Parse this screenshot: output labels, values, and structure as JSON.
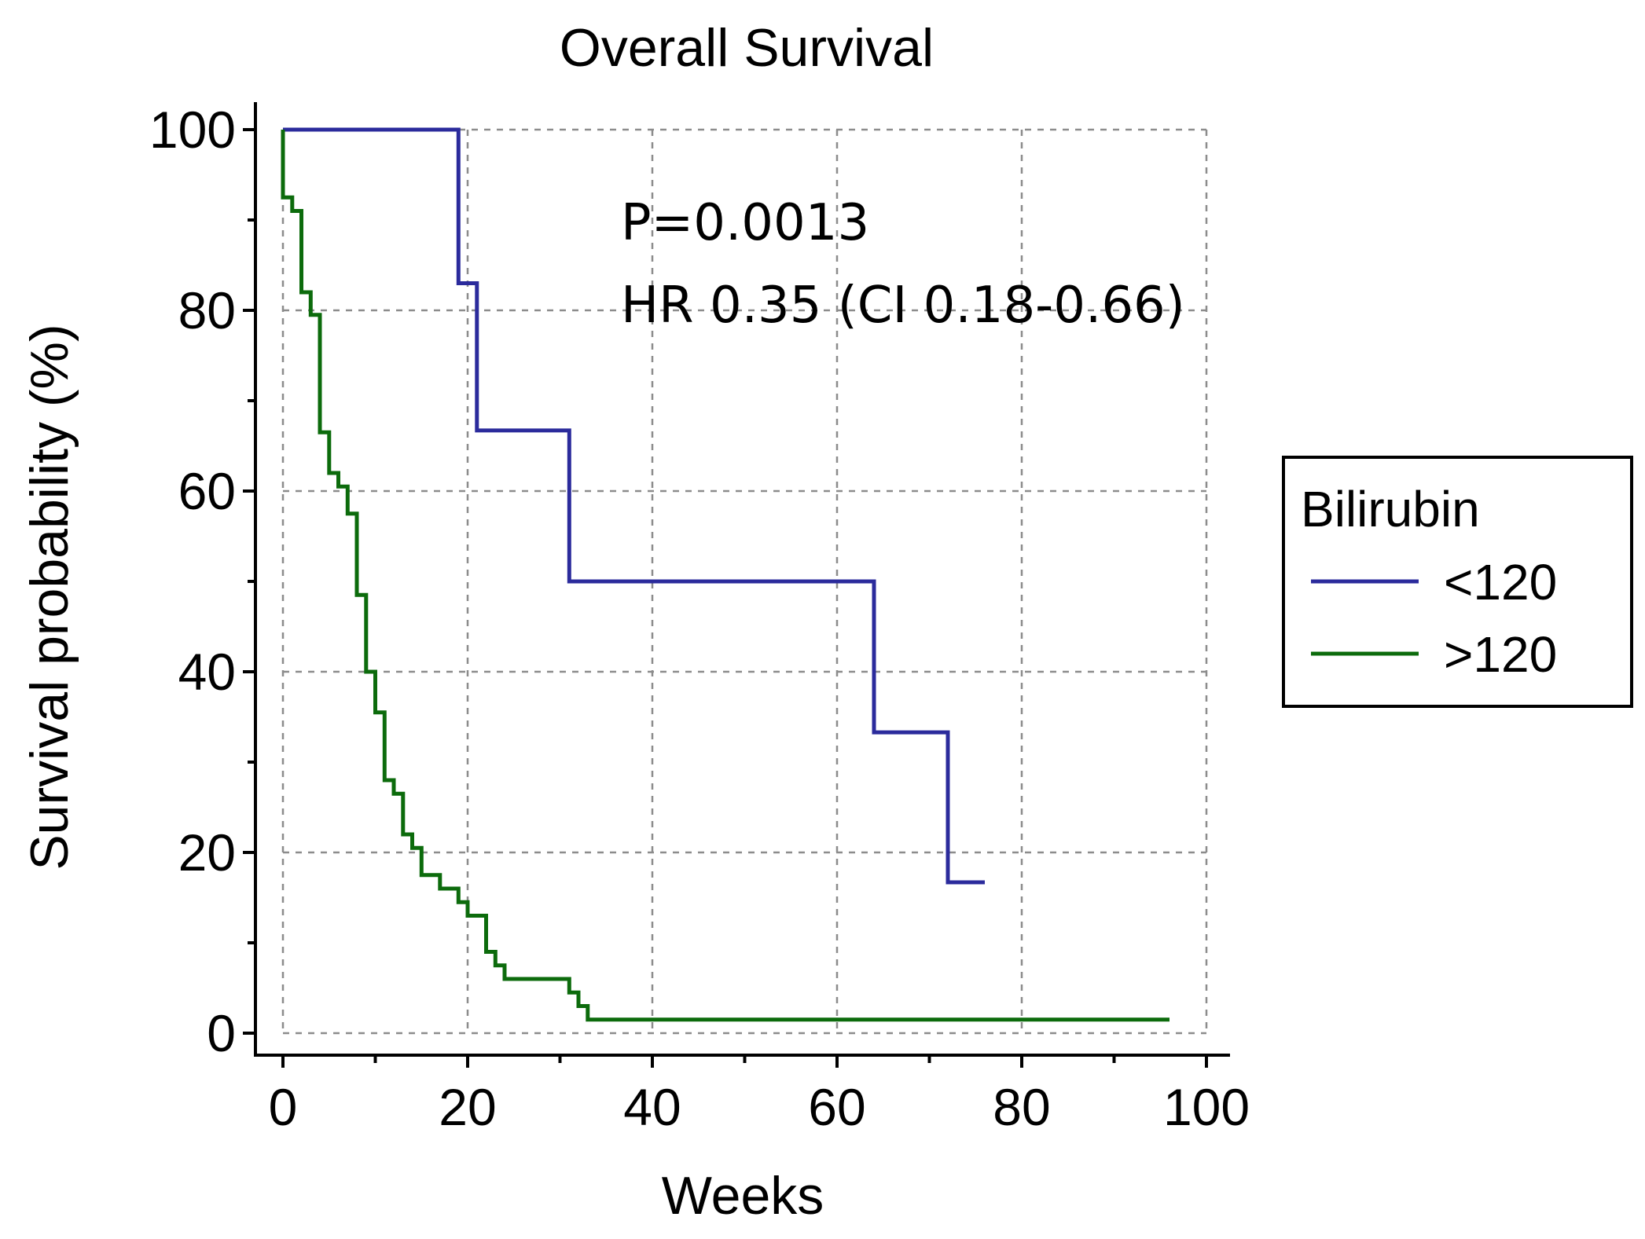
{
  "chart_data": {
    "type": "line",
    "subtype": "kaplan-meier step",
    "title": "Overall Survival",
    "xlabel": "Weeks",
    "ylabel": "Survival probability (%)",
    "xlim": [
      0,
      100
    ],
    "ylim": [
      0,
      100
    ],
    "x_ticks": [
      0,
      20,
      40,
      60,
      80,
      100
    ],
    "x_minor_ticks": [
      10,
      30,
      50,
      70,
      90
    ],
    "y_ticks": [
      0,
      20,
      40,
      60,
      80,
      100
    ],
    "y_minor_ticks": [
      10,
      30,
      50,
      70,
      90
    ],
    "grid": true,
    "annotations": [
      "P=0.0013",
      "HR 0.35 (CI 0.18-0.66)"
    ],
    "legend": {
      "title": "Bilirubin",
      "position": "right"
    },
    "series": [
      {
        "name": "<120",
        "color": "#2b2b9c",
        "x": [
          0,
          19,
          19,
          21,
          21,
          31,
          31,
          64,
          64,
          72,
          72,
          76
        ],
        "y": [
          100,
          100,
          83,
          83,
          66.7,
          66.7,
          50,
          50,
          33.3,
          33.3,
          16.7,
          16.7
        ]
      },
      {
        "name": ">120",
        "color": "#0c6b0c",
        "x": [
          0,
          0,
          1,
          1,
          2,
          2,
          3,
          3,
          4,
          4,
          5,
          5,
          6,
          6,
          7,
          7,
          8,
          8,
          9,
          9,
          10,
          10,
          11,
          11,
          12,
          12,
          13,
          13,
          14,
          14,
          15,
          15,
          17,
          17,
          19,
          19,
          20,
          20,
          22,
          22,
          23,
          23,
          24,
          24,
          31,
          31,
          32,
          32,
          33,
          33,
          35,
          35,
          96
        ],
        "y": [
          100,
          92.5,
          92.5,
          91,
          91,
          82,
          82,
          79.5,
          79.5,
          66.5,
          66.5,
          62,
          62,
          60.5,
          60.5,
          57.5,
          57.5,
          48.5,
          48.5,
          40,
          40,
          35.5,
          35.5,
          28,
          28,
          26.5,
          26.5,
          22,
          22,
          20.5,
          20.5,
          17.5,
          17.5,
          16,
          16,
          14.5,
          14.5,
          13,
          13,
          9,
          9,
          7.5,
          7.5,
          6,
          6,
          4.5,
          4.5,
          3,
          3,
          1.5,
          1.5,
          1.5,
          1.5
        ]
      }
    ]
  }
}
